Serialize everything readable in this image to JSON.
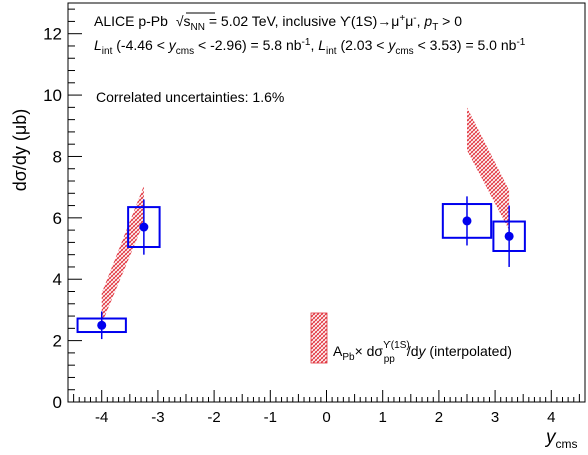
{
  "chart_data": {
    "type": "scatter",
    "title_line1": {
      "experiment": "ALICE p-Pb",
      "sqrt_symbol": "√",
      "s_label": "s",
      "s_sub": "NN",
      "energy": " = 5.02 TeV, inclusive ϒ(1S)→μ",
      "mu_plus_sup": "+",
      "mu_minus": "μ",
      "mu_minus_sup": "-",
      "pt_sep": ", ",
      "pt_label": "p",
      "pt_sub": "T",
      "pt_cut": " > 0"
    },
    "title_line2": {
      "l1": "L",
      "l1_sub": "int",
      "range1_a": " (-4.46 < ",
      "y1": "y",
      "y1_sub": "cms",
      "range1_b": " < -2.96) = 5.8 nb",
      "unit1_sup": "-1",
      "sep": ", ",
      "l2": "L",
      "l2_sub": "int",
      "range2_a": " (2.03 < ",
      "y2": "y",
      "y2_sub": "cms",
      "range2_b": " < 3.53) = 5.0 nb",
      "unit2_sup": "-1"
    },
    "annotation": "Correlated uncertainties: 1.6%",
    "xlabel": {
      "main": "y",
      "sub": "cms"
    },
    "ylabel": "dσ/dy (μb)",
    "xlim": [
      -4.6,
      4.6
    ],
    "ylim": [
      0,
      13
    ],
    "x_ticks": [
      -4,
      -3,
      -2,
      -1,
      0,
      1,
      2,
      3,
      4
    ],
    "y_ticks": [
      0,
      2,
      4,
      6,
      8,
      10,
      12
    ],
    "x_tick_labels": [
      "-4",
      "-3",
      "-2",
      "-1",
      "0",
      "1",
      "2",
      "3",
      "4"
    ],
    "y_tick_labels": [
      "0",
      "2",
      "4",
      "6",
      "8",
      "10",
      "12"
    ],
    "marker_color": "#0000ee",
    "band_color": "#e0303a",
    "points": [
      {
        "x": -4.0,
        "y": 2.5,
        "stat": 0.45,
        "sys_dx": 0.43,
        "sys_dy": 0.22
      },
      {
        "x": -3.25,
        "y": 5.7,
        "stat": 0.9,
        "sys_dx": 0.28,
        "sys_dy": 0.65
      },
      {
        "x": 2.5,
        "y": 5.9,
        "stat": 0.8,
        "sys_dx": 0.43,
        "sys_dy": 0.55
      },
      {
        "x": 3.25,
        "y": 5.4,
        "stat": 1.0,
        "sys_dx": 0.28,
        "sys_dy": 0.48
      }
    ],
    "bands": [
      {
        "x": [
          -4.0,
          -3.25
        ],
        "lower": [
          2.55,
          5.85
        ],
        "upper": [
          3.55,
          7.05
        ]
      },
      {
        "x": [
          2.5,
          3.25
        ],
        "lower": [
          8.2,
          5.6
        ],
        "upper": [
          9.6,
          6.9
        ]
      }
    ],
    "legend": {
      "label_a": "A",
      "label_a_sub": "Pb",
      "label_times": "× dσ",
      "label_sigma_sup": "ϒ(1S)",
      "label_sigma_sub": "pp",
      "label_slash": "/d",
      "label_y": "y",
      "label_tail": " (interpolated)"
    }
  }
}
